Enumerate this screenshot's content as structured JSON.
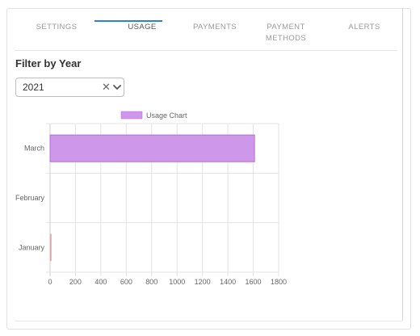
{
  "tabs": [
    {
      "label": "SETTINGS",
      "active": false
    },
    {
      "label": "USAGE",
      "active": true
    },
    {
      "label": "PAYMENTS",
      "active": false
    },
    {
      "label": "PAYMENT METHODS",
      "active": false
    },
    {
      "label": "ALERTS",
      "active": false
    }
  ],
  "filter": {
    "title": "Filter by Year",
    "selected_year": "2021",
    "clear_symbol": "✕",
    "chevron_icon": "chevron-down-icon"
  },
  "chart_data": {
    "type": "bar",
    "orientation": "horizontal",
    "categories": [
      "March",
      "February",
      "January"
    ],
    "series": [
      {
        "name": "Usage Chart",
        "values": [
          1610,
          0,
          8
        ]
      }
    ],
    "xlim": [
      0,
      1800
    ],
    "xticks": [
      "0",
      "200",
      "400",
      "600",
      "800",
      "1000",
      "1200",
      "1400",
      "1600",
      "1800"
    ],
    "grid": true,
    "legend_placement": "top",
    "colors": {
      "bar_fill": "#cf97ea",
      "bar_stroke": "#b06fd0",
      "minor_bar": "#d9a9a9"
    }
  },
  "accent_color": "#2f7fdc"
}
